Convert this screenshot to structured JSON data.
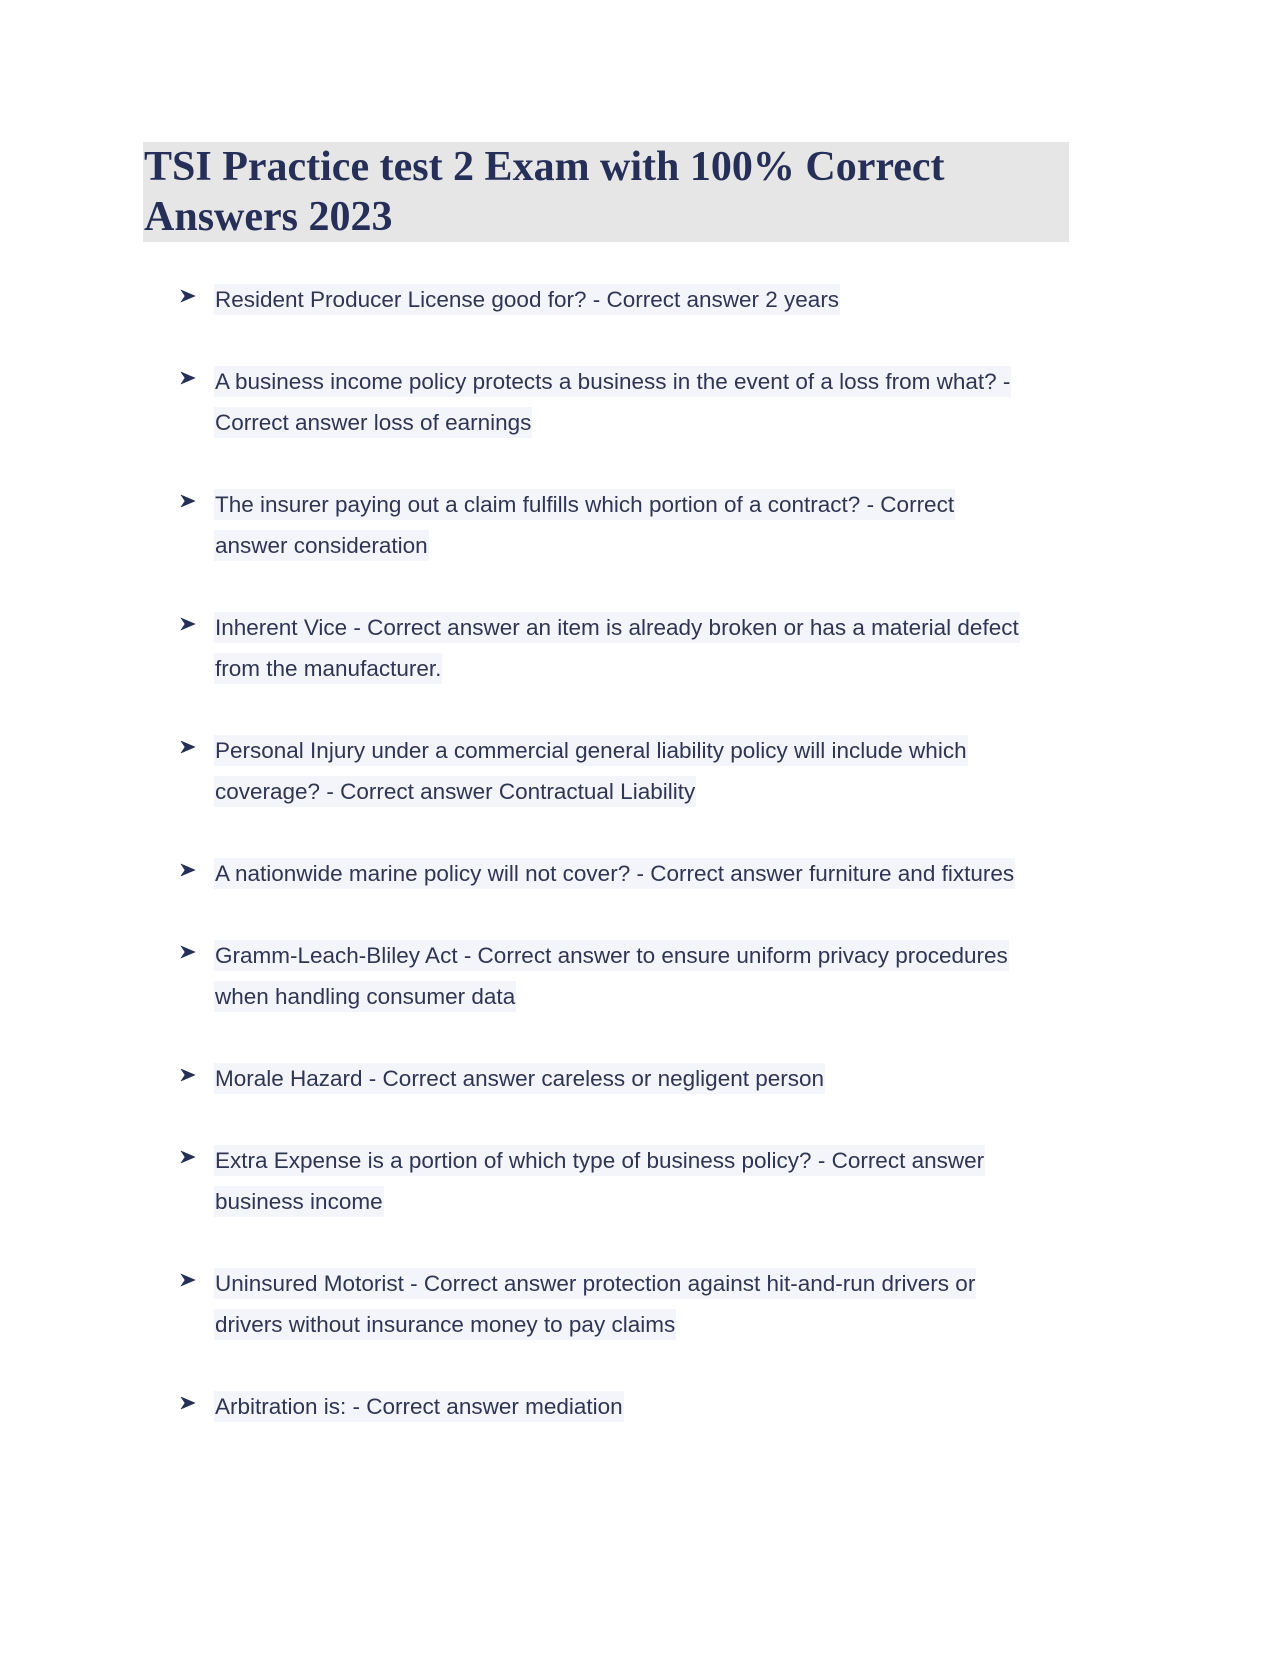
{
  "document": {
    "title_lines": [
      "TSI Practice test 2 Exam with 100% Correct",
      "Answers 2023"
    ],
    "bullet_icon": "arrowhead-bullet-icon",
    "colors": {
      "title_text": "#262f57",
      "title_background": "#e6e6e6",
      "body_text": "#2f3553",
      "text_highlight": "#f4f5fa"
    },
    "items": [
      {
        "lines": [
          "Resident Producer License good for? - Correct answer 2 years"
        ]
      },
      {
        "lines": [
          "A business income policy protects a business in the event of a loss from what? -",
          "Correct answer loss of earnings"
        ]
      },
      {
        "lines": [
          "The insurer paying out a claim fulfills which portion of a contract? - Correct",
          "answer consideration"
        ]
      },
      {
        "lines": [
          "Inherent Vice - Correct answer an item is already broken or has a material defect",
          "from the manufacturer."
        ]
      },
      {
        "lines": [
          "Personal Injury under a commercial general liability policy will include which",
          "coverage? - Correct answer Contractual Liability"
        ]
      },
      {
        "lines": [
          "A nationwide marine policy will not cover? - Correct answer furniture and fixtures"
        ]
      },
      {
        "lines": [
          "Gramm-Leach-Bliley Act - Correct answer to ensure uniform privacy procedures",
          "when handling consumer data"
        ]
      },
      {
        "lines": [
          "Morale Hazard - Correct answer careless or negligent person"
        ]
      },
      {
        "lines": [
          "Extra Expense is a portion of which type of business policy? - Correct answer",
          "business income"
        ]
      },
      {
        "lines": [
          "Uninsured Motorist - Correct answer protection against hit-and-run drivers or",
          "drivers without insurance money to pay claims"
        ]
      },
      {
        "lines": [
          "Arbitration is: - Correct answer mediation"
        ]
      }
    ]
  }
}
